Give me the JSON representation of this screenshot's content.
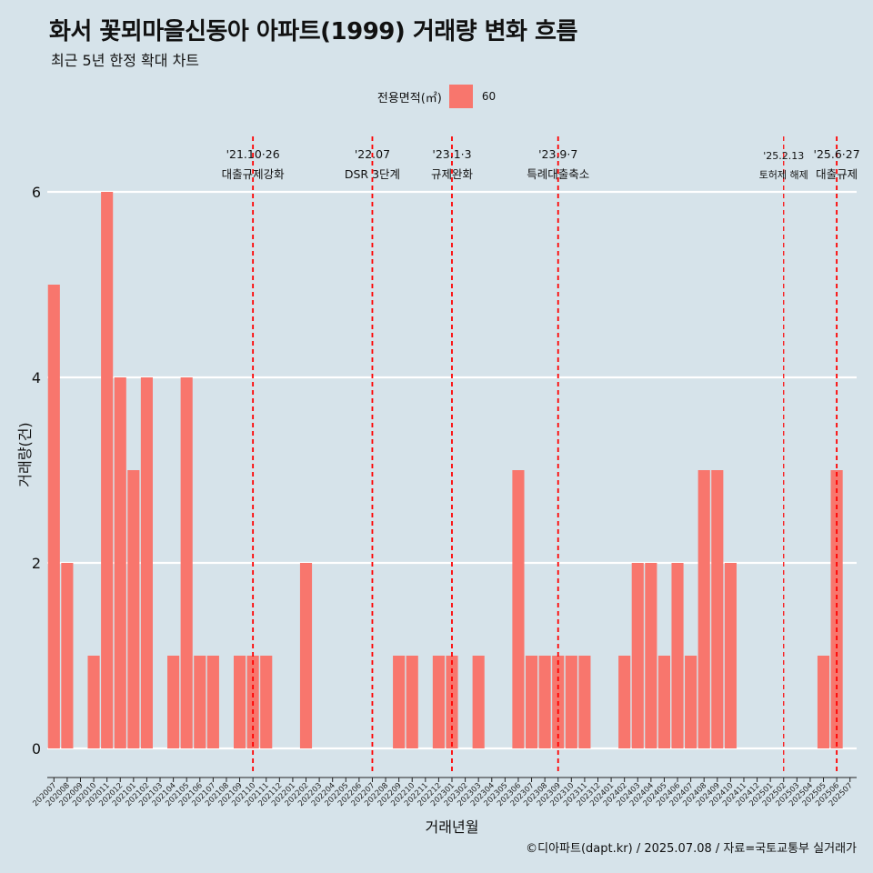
{
  "header": {
    "title": "화서 꽃뫼마을신동아 아파트(1999) 거래량 변화 흐름",
    "subtitle": "최근 5년 한정 확대 차트"
  },
  "legend": {
    "title": "전용면적(㎡)",
    "items": [
      {
        "label": "60",
        "color": "#f8766d"
      }
    ]
  },
  "caption": "©디아파트(dapt.kr) / 2025.07.08 / 자료=국토교통부 실거래가",
  "colors": {
    "bar": "#f8766d",
    "background": "#d6e3ea",
    "grid": "#ffffff",
    "event_line": "#ff0000"
  },
  "chart_data": {
    "type": "bar",
    "title": "화서 꽃뫼마을신동아 아파트(1999) 거래량 변화 흐름",
    "subtitle": "최근 5년 한정 확대 차트",
    "xlabel": "거래년월",
    "ylabel": "거래량(건)",
    "ylim": [
      0,
      6
    ],
    "yticks": [
      0,
      2,
      4,
      6
    ],
    "grid": true,
    "legend_position": "top",
    "categories": [
      "202007",
      "202008",
      "202009",
      "202010",
      "202011",
      "202012",
      "202101",
      "202102",
      "202103",
      "202104",
      "202105",
      "202106",
      "202107",
      "202108",
      "202109",
      "202110",
      "202111",
      "202112",
      "202201",
      "202202",
      "202203",
      "202204",
      "202205",
      "202206",
      "202207",
      "202208",
      "202209",
      "202210",
      "202211",
      "202212",
      "202301",
      "202302",
      "202303",
      "202304",
      "202305",
      "202306",
      "202307",
      "202308",
      "202309",
      "202310",
      "202311",
      "202312",
      "202401",
      "202402",
      "202403",
      "202404",
      "202405",
      "202406",
      "202407",
      "202408",
      "202409",
      "202410",
      "202411",
      "202412",
      "202501",
      "202502",
      "202503",
      "202504",
      "202505",
      "202506",
      "202507"
    ],
    "series": [
      {
        "name": "60",
        "values": [
          5,
          2,
          0,
          1,
          6,
          4,
          3,
          4,
          0,
          1,
          4,
          1,
          1,
          0,
          1,
          1,
          1,
          0,
          0,
          2,
          0,
          0,
          0,
          0,
          0,
          0,
          1,
          1,
          0,
          1,
          1,
          0,
          1,
          0,
          0,
          3,
          1,
          1,
          1,
          1,
          1,
          0,
          0,
          1,
          2,
          2,
          1,
          2,
          1,
          3,
          3,
          2,
          0,
          0,
          0,
          0,
          0,
          0,
          1,
          3,
          0
        ]
      }
    ],
    "events": [
      {
        "date_label": "'21.10·26",
        "text": "대출규제강화",
        "position": 15.5,
        "style": "bold"
      },
      {
        "date_label": "'22.07",
        "text": "DSR 3단계",
        "position": 24.5,
        "style": "bold"
      },
      {
        "date_label": "'23.1·3",
        "text": "규제완화",
        "position": 30.5,
        "style": "bold"
      },
      {
        "date_label": "'23.9·7",
        "text": "특례대출축소",
        "position": 38.5,
        "style": "bold"
      },
      {
        "date_label": "'25.2.13",
        "text": "토허제 해제",
        "position": 55.5,
        "style": "thin"
      },
      {
        "date_label": "'25.6·27",
        "text": "대출규제",
        "position": 59.5,
        "style": "bold"
      }
    ]
  }
}
